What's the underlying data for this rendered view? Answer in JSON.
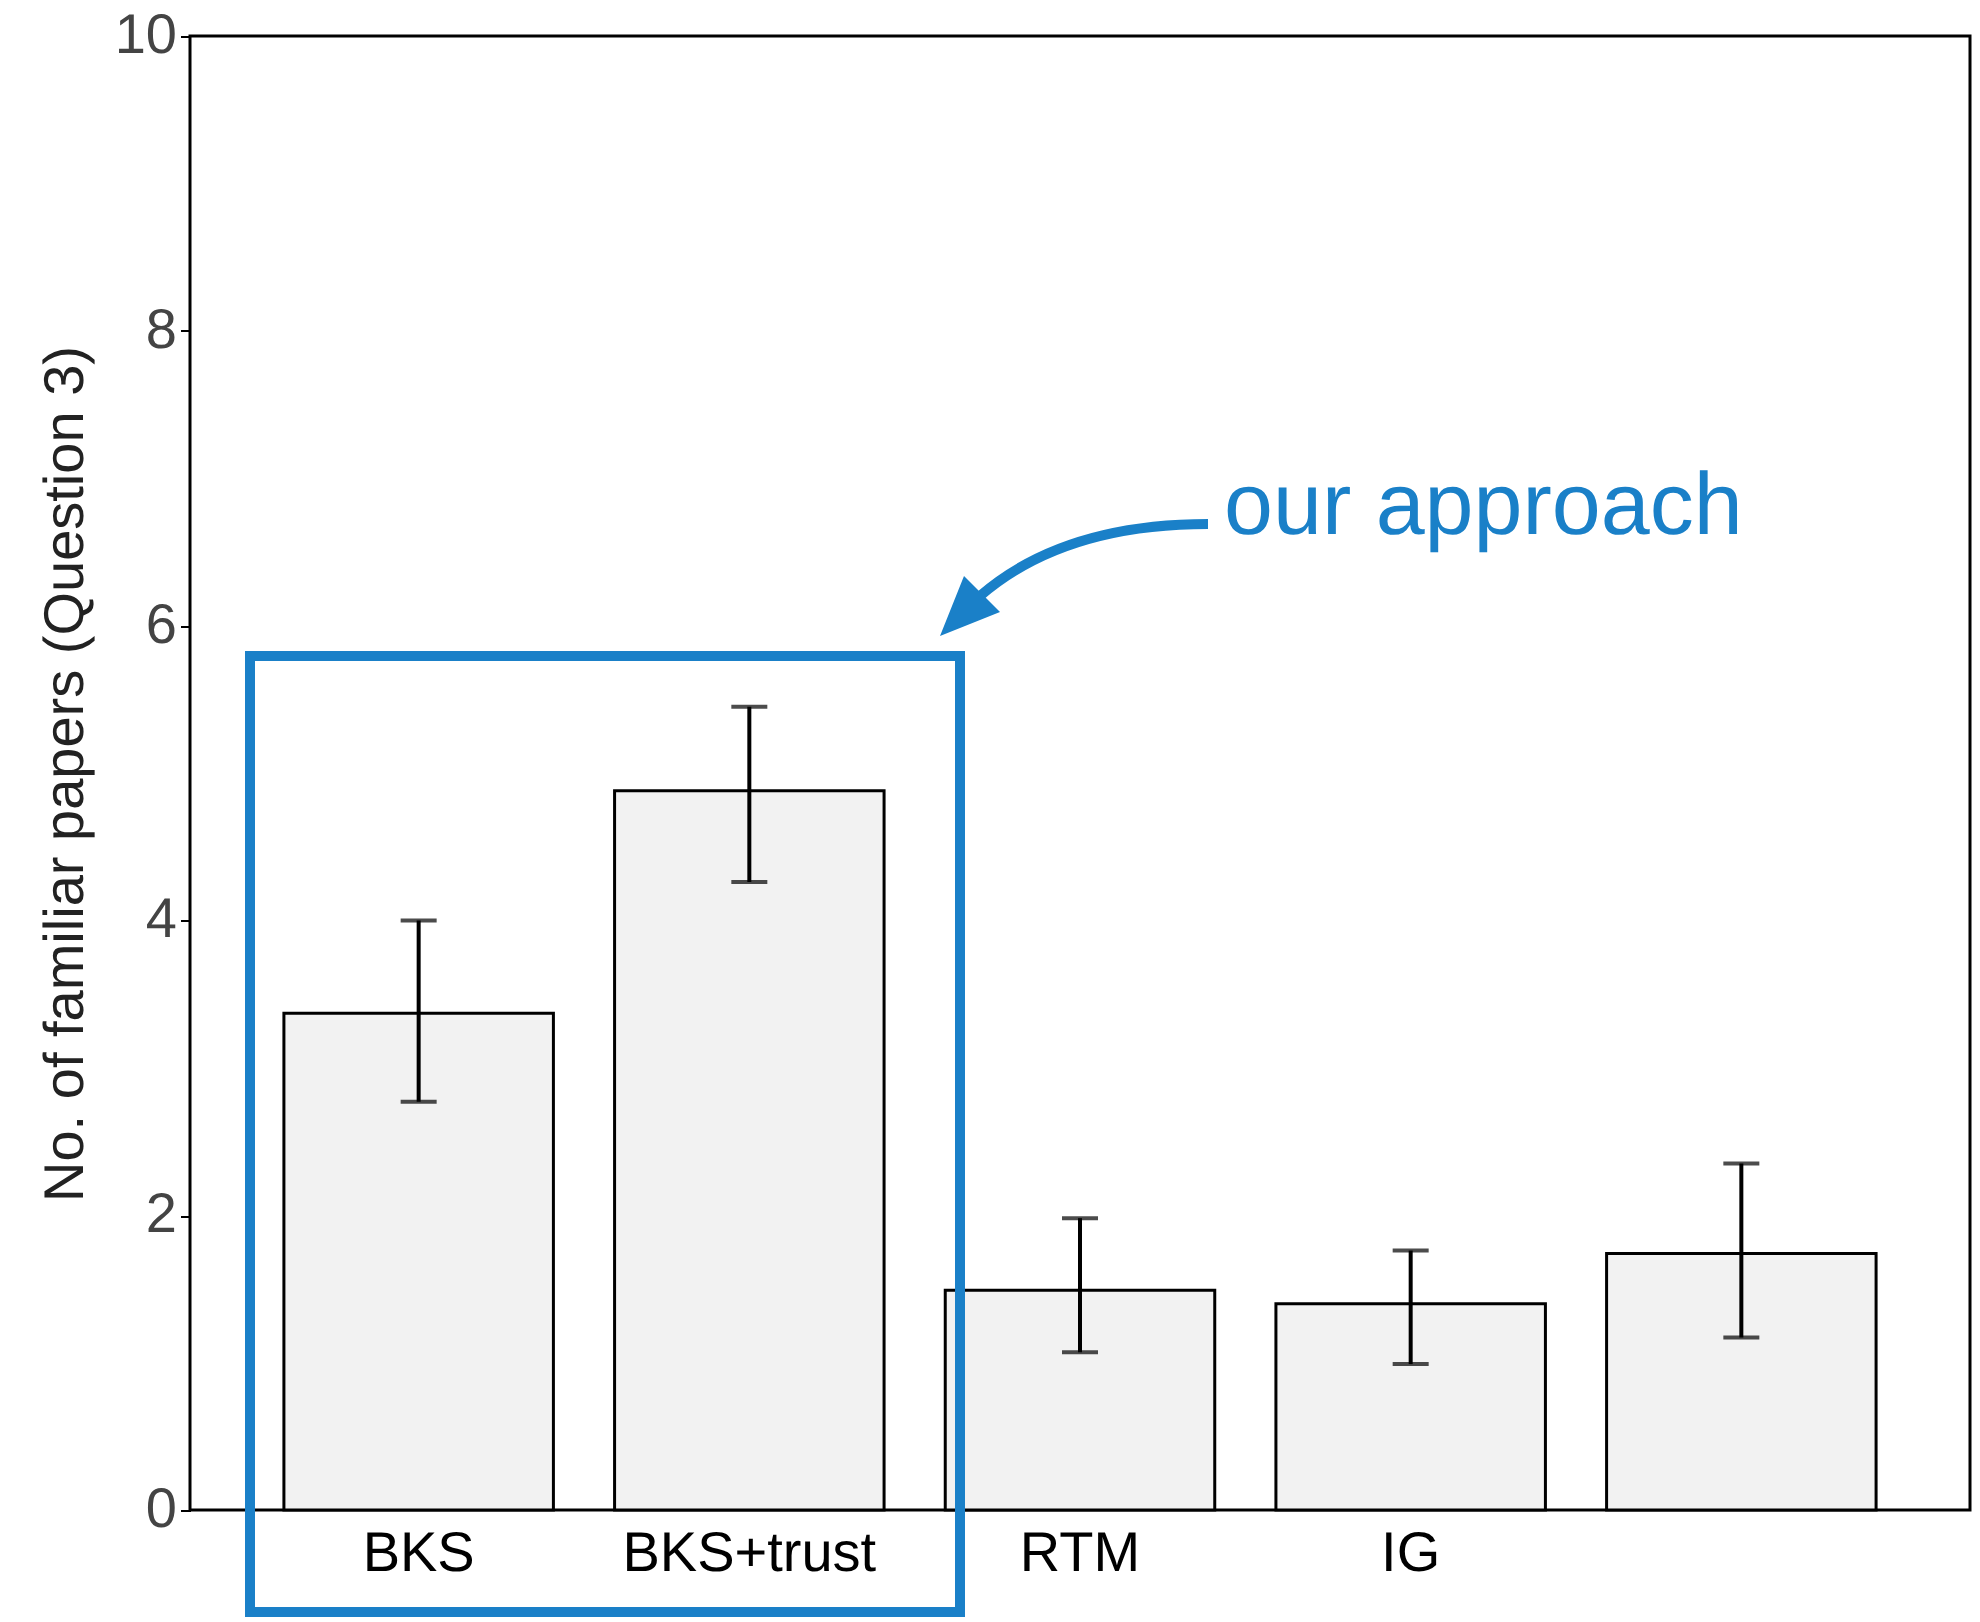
{
  "chart_data": {
    "type": "bar",
    "categories": [
      "BKS",
      "BKS+trust",
      "RTM",
      "IG",
      null
    ],
    "values": [
      3.37,
      4.88,
      1.49,
      1.4,
      1.74
    ],
    "errors": [
      [
        2.77,
        4.0
      ],
      [
        4.26,
        5.45
      ],
      [
        1.07,
        1.98
      ],
      [
        0.99,
        1.76
      ],
      [
        1.17,
        2.35
      ]
    ],
    "color": "#f2f2f2",
    "ylabel": "No. of familiar papers (Question 3)",
    "ylim": [
      0,
      10
    ],
    "yticks": [
      0,
      2,
      4,
      6,
      8,
      10
    ],
    "grid": false,
    "annotations": [
      "our approach"
    ]
  }
}
